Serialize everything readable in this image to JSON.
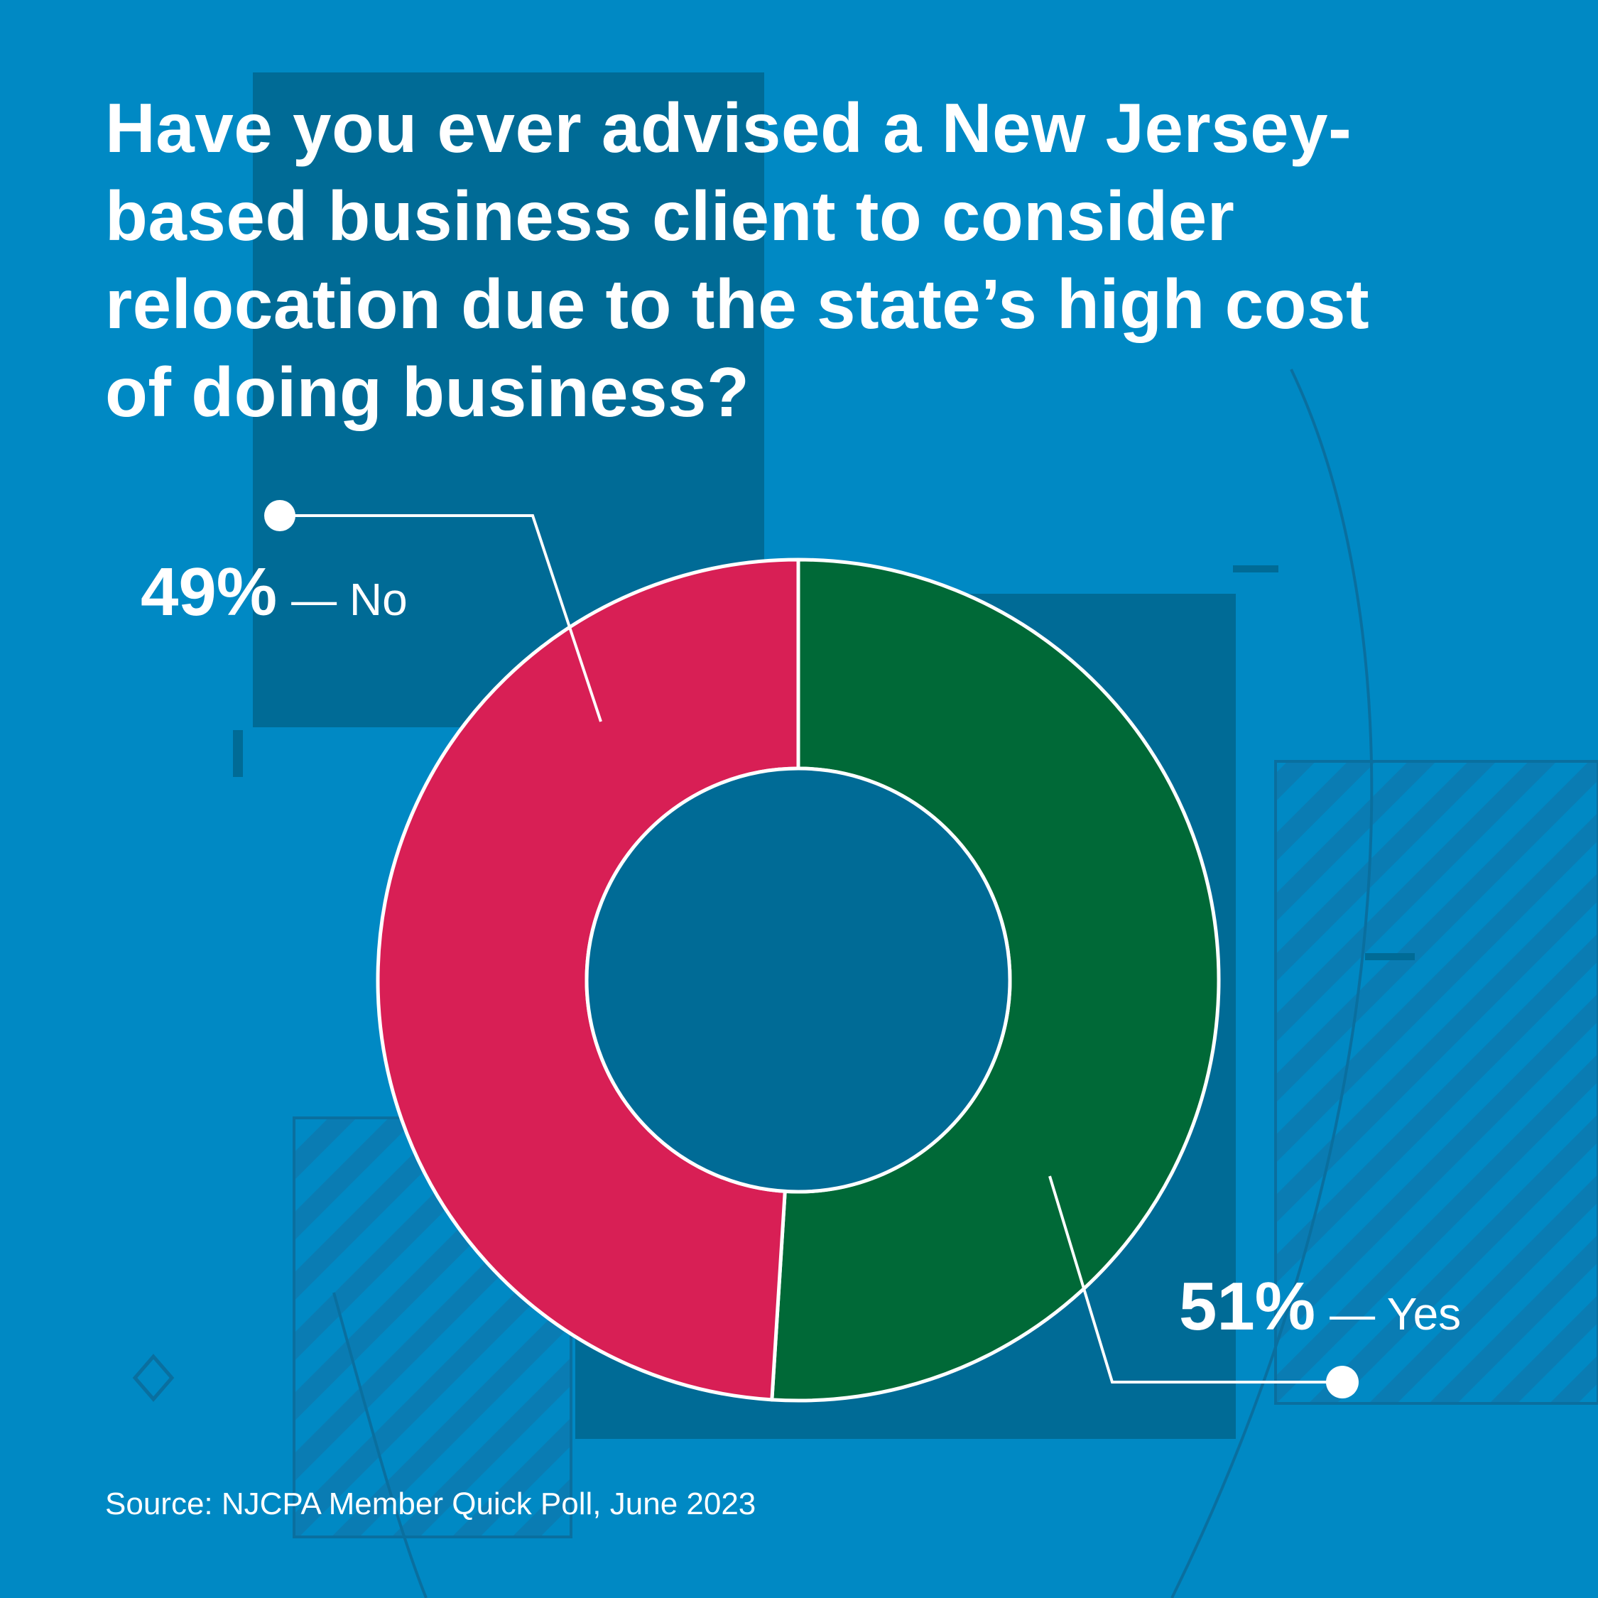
{
  "title_lines": [
    "Have you ever advised a New Jersey-",
    "based business client to consider",
    "relocation due to the state’s high cost",
    "of doing business?"
  ],
  "source": "Source: NJCPA Member Quick Poll, June 2023",
  "colors": {
    "background": "#0089c4",
    "dark_panel": "#006b96",
    "yes": "#006937",
    "no": "#d81f55",
    "center": "#006b96",
    "stroke": "#ffffff"
  },
  "chart_data": {
    "type": "pie",
    "donut": true,
    "categories": [
      "Yes",
      "No"
    ],
    "values": [
      51,
      49
    ],
    "labels": [
      {
        "category": "Yes",
        "percent": "51%",
        "text": "— Yes"
      },
      {
        "category": "No",
        "percent": "49%",
        "text": "— No"
      }
    ],
    "start": "12 o'clock",
    "direction": "clockwise"
  }
}
